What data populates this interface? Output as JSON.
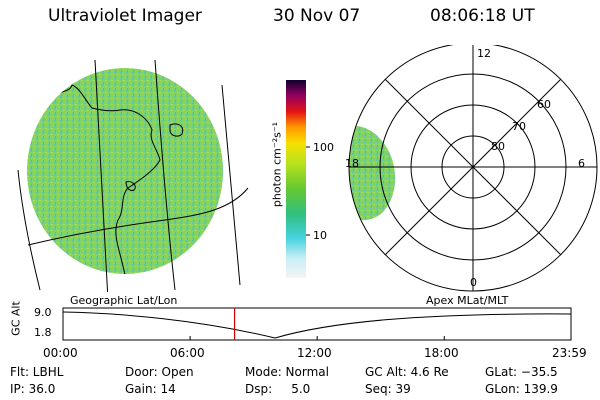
{
  "header": {
    "instrument": "Ultraviolet Imager",
    "date": "30 Nov 07",
    "time": "08:06:18 UT"
  },
  "colorbar": {
    "label": "photon cm⁻²s⁻¹",
    "ticks": [
      "100",
      "10"
    ]
  },
  "polar": {
    "lat_labels": [
      "80",
      "70",
      "60"
    ],
    "mlt_labels": [
      "12",
      "18",
      "6",
      "0"
    ]
  },
  "panel_labels": {
    "left": "Geographic Lat/Lon",
    "right": "Apex MLat/MLT"
  },
  "altitude": {
    "axis_label": "GC Alt",
    "y_ticks": [
      "9.0",
      "1.8"
    ],
    "x_ticks": [
      "00:00",
      "06:00",
      "12:00",
      "18:00",
      "23:59"
    ],
    "marker_time": "08:06",
    "marker_color": "#d00000"
  },
  "status": {
    "row1": {
      "flt": "Flt: LBHL",
      "door": "Door: Open",
      "mode": "Mode: Normal",
      "gcalt": "GC Alt: 4.6 Re",
      "glat": "GLat: −35.5"
    },
    "row2": {
      "ip": "IP: 36.0",
      "gain": "Gain: 14",
      "dsp": "Dsp:     5.0",
      "seq": "Seq: 39",
      "glon": "GLon: 139.9"
    }
  }
}
